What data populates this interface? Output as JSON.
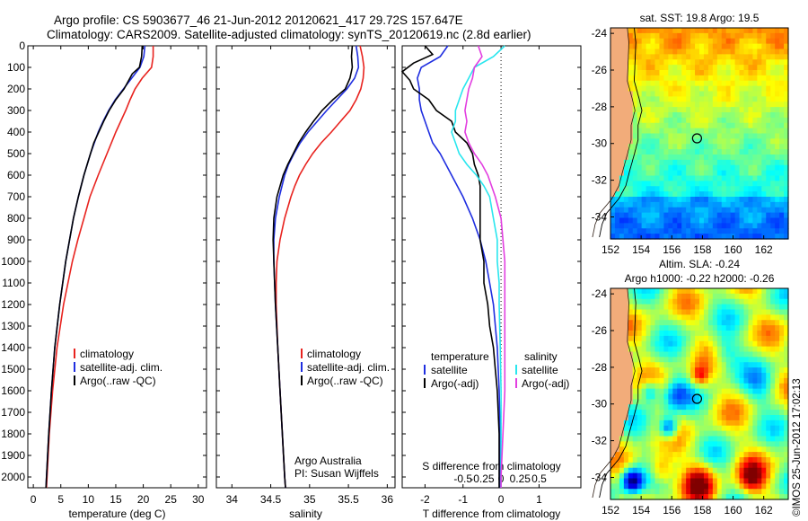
{
  "title": {
    "line1": "Argo profile: CS 5903677_46 21-Jun-2012 20120621_417 29.72S 157.647E",
    "line2": "Climatology: CARS2009. Satellite-adjusted climatology: synTS_20120619.nc (2.8d earlier)"
  },
  "colors": {
    "clim": "#e8231f",
    "sat": "#1f2ee0",
    "argo": "#000000",
    "sat_s": "#29e6ee",
    "argo_s": "#e23fe0",
    "land": "#f2ac7a"
  },
  "depth_axis": {
    "ylim": [
      0,
      2050
    ],
    "ticks": [
      0,
      100,
      200,
      300,
      400,
      500,
      600,
      700,
      800,
      900,
      1000,
      1100,
      1200,
      1300,
      1400,
      1500,
      1600,
      1700,
      1800,
      1900,
      2000
    ]
  },
  "chart_data": [
    {
      "type": "line",
      "panel": "temperature",
      "xlabel": "temperature (deg C)",
      "xlim": [
        -1,
        31.5
      ],
      "xticks": [
        0,
        5,
        10,
        15,
        20,
        25,
        30
      ],
      "xticklabels": [
        "0",
        "5",
        "10",
        "15",
        "20",
        "25",
        "30"
      ],
      "legend": [
        "climatology",
        "satellite-adj. clim.",
        "Argo(..raw -QC)"
      ],
      "series": [
        {
          "name": "climatology",
          "color_key": "clim",
          "depth": [
            0,
            50,
            100,
            150,
            200,
            250,
            300,
            350,
            400,
            500,
            600,
            700,
            800,
            900,
            1000,
            1200,
            1400,
            1600,
            1800,
            2000,
            2050
          ],
          "values": [
            21.8,
            21.8,
            21.5,
            19.8,
            18.5,
            17.6,
            16.8,
            15.9,
            15.0,
            13.4,
            11.8,
            10.3,
            9.2,
            8.1,
            7.1,
            5.5,
            4.3,
            3.5,
            2.9,
            2.5,
            2.4
          ]
        },
        {
          "name": "satellite-adj. clim.",
          "color_key": "sat",
          "depth": [
            0,
            50,
            100,
            150,
            200,
            250,
            300,
            350,
            400,
            500,
            600,
            700,
            800,
            900,
            1000,
            1200,
            1400,
            1600,
            1800,
            2000,
            2050
          ],
          "values": [
            20.3,
            20.1,
            19.4,
            17.9,
            16.4,
            14.9,
            13.7,
            12.7,
            11.8,
            10.4,
            9.2,
            8.2,
            7.3,
            6.6,
            5.9,
            4.8,
            3.9,
            3.3,
            2.8,
            2.4,
            2.3
          ]
        },
        {
          "name": "Argo(..raw -QC)",
          "color_key": "argo",
          "depth": [
            0,
            50,
            100,
            130,
            200,
            250,
            300,
            350,
            400,
            450,
            500,
            600,
            700,
            800,
            900,
            1000,
            1200,
            1400,
            1600,
            1800,
            2000,
            2050
          ],
          "values": [
            19.8,
            19.7,
            19.3,
            18.0,
            16.5,
            15.0,
            13.8,
            12.8,
            11.9,
            11.0,
            10.4,
            9.2,
            8.2,
            7.3,
            6.6,
            5.9,
            4.8,
            3.9,
            3.3,
            2.8,
            2.4,
            2.3
          ]
        }
      ]
    },
    {
      "type": "line",
      "panel": "salinity",
      "xlabel": "salinity",
      "xlim": [
        33.8,
        36.1
      ],
      "xticks": [
        34,
        34.5,
        35,
        35.5,
        36
      ],
      "xticklabels": [
        "34",
        "34.5",
        "35",
        "35.5",
        "36"
      ],
      "legend": [
        "climatology",
        "satellite-adj. clim.",
        "Argo(..raw -QC)"
      ],
      "notes": [
        "Argo Australia",
        "PI: Susan Wijffels"
      ],
      "series": [
        {
          "name": "climatology",
          "color_key": "clim",
          "depth": [
            0,
            50,
            100,
            150,
            200,
            250,
            300,
            350,
            400,
            450,
            500,
            550,
            600,
            650,
            700,
            800,
            900,
            1000,
            1100,
            1200,
            1400,
            1600,
            1800,
            2000,
            2050
          ],
          "values": [
            35.65,
            35.68,
            35.7,
            35.69,
            35.66,
            35.6,
            35.52,
            35.4,
            35.28,
            35.15,
            35.04,
            34.95,
            34.87,
            34.81,
            34.76,
            34.68,
            34.62,
            34.58,
            34.57,
            34.57,
            34.59,
            34.62,
            34.65,
            34.68,
            34.69
          ]
        },
        {
          "name": "satellite-adj. clim.",
          "color_key": "sat",
          "depth": [
            0,
            50,
            100,
            150,
            200,
            250,
            300,
            350,
            400,
            450,
            500,
            550,
            600,
            700,
            800,
            900,
            1000,
            1100,
            1200,
            1400,
            1600,
            1800,
            2000,
            2050
          ],
          "values": [
            35.6,
            35.62,
            35.63,
            35.58,
            35.48,
            35.35,
            35.22,
            35.1,
            34.98,
            34.88,
            34.8,
            34.73,
            34.68,
            34.61,
            34.56,
            34.54,
            34.54,
            34.55,
            34.56,
            34.59,
            34.62,
            34.65,
            34.68,
            34.69
          ]
        },
        {
          "name": "Argo(..raw -QC)",
          "color_key": "argo",
          "depth": [
            0,
            50,
            100,
            150,
            200,
            250,
            300,
            350,
            400,
            450,
            500,
            550,
            600,
            700,
            800,
            900,
            1000,
            1100,
            1200,
            1400,
            1600,
            1800,
            2000,
            2050
          ],
          "values": [
            35.55,
            35.54,
            35.55,
            35.52,
            35.46,
            35.3,
            35.16,
            35.05,
            34.95,
            34.86,
            34.79,
            34.72,
            34.66,
            34.58,
            34.54,
            34.53,
            34.54,
            34.55,
            34.56,
            34.59,
            34.62,
            34.65,
            34.68,
            34.69
          ]
        }
      ]
    },
    {
      "type": "line",
      "panel": "difference",
      "xlabel": "T difference from climatology",
      "top_xlabel": "S difference from climatology",
      "xlim": [
        -2.6,
        2.1
      ],
      "xticks": [
        -2,
        -1,
        0,
        1
      ],
      "xticklabels": [
        "-2",
        "-1",
        "0",
        "1"
      ],
      "s_ticks": [
        -1.0,
        -0.5,
        0,
        0.5,
        1.0
      ],
      "s_ticklabels": [
        "-0.5",
        "-0.25",
        "0",
        "0.25",
        "0.5"
      ],
      "legend_t": {
        "title": "temperature",
        "items": [
          "satellite",
          "Argo(-adj)"
        ]
      },
      "legend_s": {
        "title": "salinity",
        "items": [
          "satellite",
          "Argo(-adj)"
        ]
      },
      "series": [
        {
          "name": "T satellite",
          "color_key": "sat",
          "depth": [
            0,
            50,
            100,
            150,
            200,
            250,
            300,
            350,
            400,
            450,
            500,
            600,
            700,
            800,
            900,
            1000,
            1100,
            1200,
            1400,
            1600,
            1800,
            2000,
            2050
          ],
          "values": [
            -1.4,
            -1.6,
            -2.1,
            -2.2,
            -2.15,
            -2.15,
            -2.1,
            -2.0,
            -1.9,
            -1.8,
            -1.6,
            -1.3,
            -1.0,
            -0.75,
            -0.55,
            -0.4,
            -0.3,
            -0.2,
            -0.1,
            -0.05,
            -0.02,
            -0.02,
            -0.02
          ]
        },
        {
          "name": "T Argo(-adj)",
          "color_key": "argo",
          "depth": [
            0,
            40,
            80,
            120,
            160,
            200,
            250,
            300,
            350,
            400,
            450,
            500,
            550,
            600,
            650,
            700,
            800,
            900,
            1000,
            1100,
            1200,
            1300,
            1400,
            1500,
            1600,
            1800,
            2000,
            2050
          ],
          "values": [
            -2.0,
            -1.8,
            -2.3,
            -2.6,
            -2.4,
            -2.3,
            -1.9,
            -1.7,
            -1.3,
            -1.2,
            -0.9,
            -0.75,
            -0.7,
            -0.6,
            -0.55,
            -0.55,
            -0.55,
            -0.55,
            -0.45,
            -0.45,
            -0.35,
            -0.3,
            -0.2,
            -0.15,
            -0.1,
            -0.05,
            -0.05,
            -0.05
          ]
        },
        {
          "name": "S satellite",
          "color_key": "sat_s",
          "depth": [
            0,
            50,
            100,
            150,
            200,
            250,
            300,
            350,
            400,
            450,
            500,
            550,
            600,
            650,
            700,
            800,
            900,
            1000,
            1100,
            1200,
            1400,
            1600,
            1800,
            2000,
            2050
          ],
          "values": [
            0.1,
            -0.2,
            -0.7,
            -0.85,
            -1.0,
            -1.1,
            -1.2,
            -1.2,
            -1.3,
            -1.2,
            -1.1,
            -0.9,
            -0.65,
            -0.45,
            -0.3,
            -0.2,
            -0.1,
            -0.1,
            -0.05,
            -0.05,
            -0.02,
            0.0,
            0.0,
            0.0,
            0.0
          ]
        },
        {
          "name": "S Argo(-adj)",
          "color_key": "argo_s",
          "depth": [
            0,
            50,
            100,
            150,
            200,
            250,
            300,
            350,
            400,
            450,
            500,
            550,
            600,
            650,
            700,
            800,
            900,
            1000,
            1200,
            1400,
            1600,
            1800,
            2000,
            2050
          ],
          "values": [
            -0.6,
            -0.5,
            -0.7,
            -0.75,
            -0.85,
            -0.9,
            -0.95,
            -0.9,
            -0.95,
            -0.85,
            -0.7,
            -0.5,
            -0.35,
            -0.25,
            -0.15,
            0.0,
            0.05,
            0.1,
            0.1,
            0.1,
            0.1,
            0.05,
            0.0,
            0.0
          ]
        }
      ]
    },
    {
      "type": "heatmap",
      "panel": "sst_map",
      "title": "sat. SST: 19.8 Argo: 19.5",
      "xlim": [
        152,
        163.6
      ],
      "ylim": [
        -35.2,
        -23.7
      ],
      "xticks": [
        152,
        154,
        156,
        158,
        160,
        162
      ],
      "yticks": [
        -24,
        -26,
        -28,
        -30,
        -32,
        -34
      ],
      "argo_position": {
        "lon": 157.647,
        "lat": -29.72
      }
    },
    {
      "type": "heatmap",
      "panel": "sla_map",
      "title": "Altim. SLA: -0.24",
      "subtitle": "Argo h1000: -0.22 h2000: -0.26",
      "xlim": [
        152,
        163.6
      ],
      "ylim": [
        -35.2,
        -23.7
      ],
      "xticks": [
        152,
        154,
        156,
        158,
        160,
        162
      ],
      "yticks": [
        -24,
        -26,
        -28,
        -30,
        -32,
        -34
      ],
      "argo_position": {
        "lon": 157.647,
        "lat": -29.72
      }
    }
  ],
  "imos_stamp": "©IMOS 25-Jun-2012 17:02:13"
}
